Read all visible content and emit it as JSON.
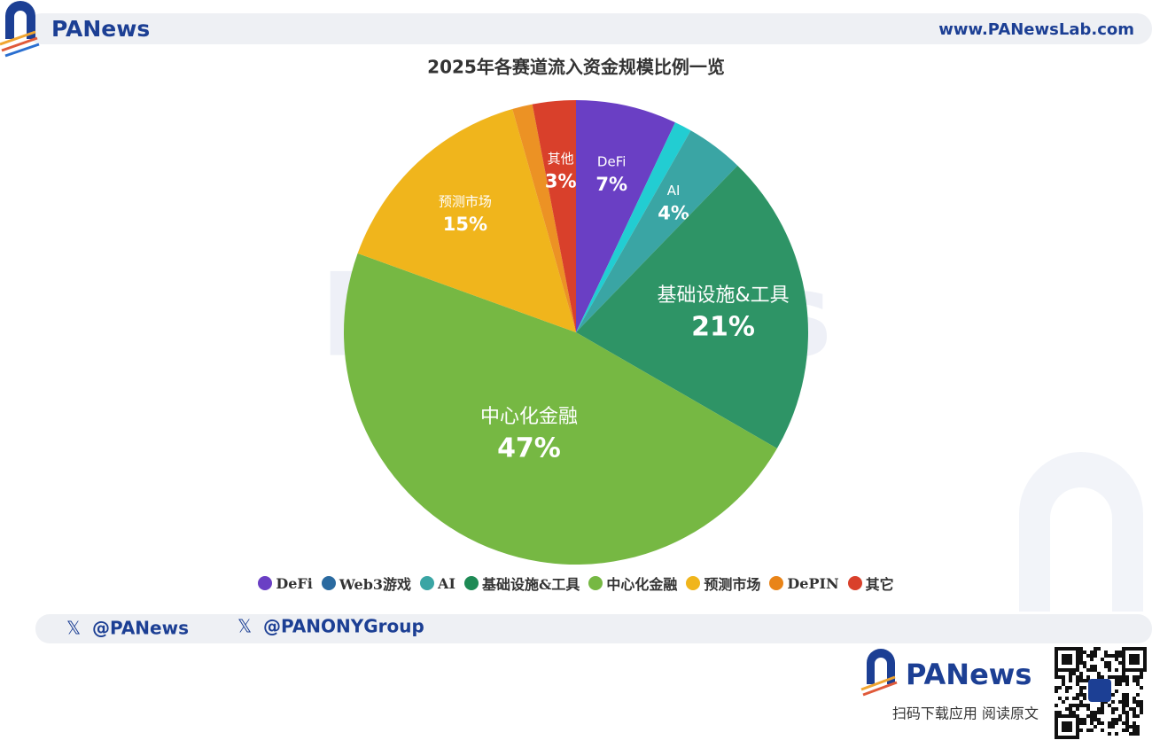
{
  "header": {
    "brand": "PANews",
    "url": "www.PANewsLab.com"
  },
  "chart_data": {
    "type": "pie",
    "title": "2025年各赛道流入资金规模比例一览",
    "categories": [
      "DeFi",
      "Web3游戏",
      "AI",
      "基础设施&工具",
      "中心化金融",
      "预测市场",
      "DePIN",
      "其它"
    ],
    "values": [
      7,
      1.2,
      4,
      21,
      47,
      15,
      1.4,
      3
    ],
    "value_labels": [
      "7%",
      null,
      "4%",
      "21%",
      "47%",
      "15%",
      null,
      "3%"
    ],
    "slice_labels": [
      "DeFi",
      null,
      "AI",
      "基础设施&工具",
      "中心化金融",
      "预测市场",
      null,
      "其他"
    ],
    "colors": [
      "#6a3fc4",
      "#22cdd2",
      "#3aa5a4",
      "#2e9466",
      "#76b843",
      "#f0b51c",
      "#ec9224",
      "#d9402b"
    ],
    "legend_colors": [
      "#6a3fc4",
      "#2a6aa0",
      "#3aa5a4",
      "#1e8a55",
      "#76b843",
      "#f0b51c",
      "#e98418",
      "#d9402b"
    ]
  },
  "footer": {
    "handles": [
      "@PANews",
      "@PANONYGroup"
    ],
    "brand": "PANews",
    "cta": "扫码下载应用  阅读原文"
  }
}
